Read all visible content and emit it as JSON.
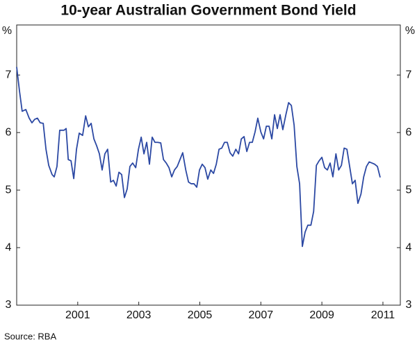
{
  "chart_data": {
    "type": "line",
    "title": "10-year Australian Government Bond Yield",
    "y_label": "%",
    "source": "Source: RBA",
    "xlim": [
      1999,
      2011.57
    ],
    "xticks": [
      2001,
      2003,
      2005,
      2007,
      2009,
      2011
    ],
    "ylim": [
      3,
      7.87
    ],
    "yticks": [
      3,
      4,
      5,
      6,
      7
    ],
    "grid": false,
    "x": [
      1999.0,
      1999.09,
      1999.18,
      1999.3,
      1999.41,
      1999.5,
      1999.59,
      1999.68,
      1999.77,
      1999.87,
      1999.96,
      2000.05,
      2000.16,
      2000.23,
      2000.32,
      2000.41,
      2000.55,
      2000.62,
      2000.69,
      2000.78,
      2000.87,
      2000.96,
      2001.05,
      2001.16,
      2001.26,
      2001.35,
      2001.44,
      2001.53,
      2001.62,
      2001.71,
      2001.8,
      2001.89,
      2001.98,
      2002.08,
      2002.17,
      2002.26,
      2002.35,
      2002.44,
      2002.53,
      2002.62,
      2002.71,
      2002.8,
      2002.9,
      2002.99,
      2003.08,
      2003.17,
      2003.26,
      2003.35,
      2003.44,
      2003.53,
      2003.62,
      2003.72,
      2003.81,
      2003.9,
      2003.99,
      2004.08,
      2004.17,
      2004.26,
      2004.35,
      2004.44,
      2004.54,
      2004.63,
      2004.72,
      2004.81,
      2004.9,
      2004.99,
      2005.08,
      2005.17,
      2005.26,
      2005.36,
      2005.45,
      2005.54,
      2005.63,
      2005.72,
      2005.81,
      2005.9,
      2005.99,
      2006.08,
      2006.18,
      2006.27,
      2006.36,
      2006.45,
      2006.54,
      2006.63,
      2006.72,
      2006.81,
      2006.9,
      2007.0,
      2007.09,
      2007.18,
      2007.27,
      2007.36,
      2007.45,
      2007.54,
      2007.63,
      2007.72,
      2007.82,
      2007.91,
      2008.0,
      2008.09,
      2008.18,
      2008.27,
      2008.36,
      2008.45,
      2008.54,
      2008.64,
      2008.73,
      2008.82,
      2008.91,
      2009.0,
      2009.09,
      2009.18,
      2009.27,
      2009.36,
      2009.46,
      2009.55,
      2009.64,
      2009.73,
      2009.82,
      2009.91,
      2010.0,
      2010.09,
      2010.18,
      2010.28,
      2010.37,
      2010.46,
      2010.55,
      2010.64,
      2010.73,
      2010.82,
      2010.91
    ],
    "series": [
      {
        "name": "10-year yield",
        "color": "#2b48a3",
        "values": [
          7.14,
          6.73,
          6.37,
          6.4,
          6.25,
          6.17,
          6.23,
          6.25,
          6.17,
          6.16,
          5.71,
          5.43,
          5.27,
          5.23,
          5.41,
          6.04,
          6.04,
          6.07,
          5.53,
          5.51,
          5.2,
          5.71,
          5.99,
          5.95,
          6.29,
          6.1,
          6.16,
          5.89,
          5.77,
          5.63,
          5.35,
          5.63,
          5.71,
          5.14,
          5.17,
          5.07,
          5.31,
          5.27,
          4.87,
          5.02,
          5.41,
          5.47,
          5.39,
          5.71,
          5.92,
          5.63,
          5.83,
          5.45,
          5.92,
          5.83,
          5.83,
          5.82,
          5.53,
          5.47,
          5.39,
          5.23,
          5.35,
          5.41,
          5.53,
          5.65,
          5.35,
          5.14,
          5.11,
          5.11,
          5.05,
          5.35,
          5.45,
          5.39,
          5.19,
          5.35,
          5.29,
          5.45,
          5.71,
          5.73,
          5.83,
          5.83,
          5.65,
          5.59,
          5.71,
          5.63,
          5.89,
          5.93,
          5.67,
          5.83,
          5.83,
          6.01,
          6.25,
          6.01,
          5.89,
          6.11,
          6.11,
          5.89,
          6.31,
          6.07,
          6.31,
          6.05,
          6.31,
          6.52,
          6.47,
          6.13,
          5.41,
          5.11,
          4.02,
          4.27,
          4.39,
          4.39,
          4.63,
          5.43,
          5.51,
          5.57,
          5.39,
          5.35,
          5.47,
          5.23,
          5.63,
          5.35,
          5.43,
          5.73,
          5.71,
          5.41,
          5.11,
          5.17,
          4.77,
          4.93,
          5.23,
          5.41,
          5.49,
          5.47,
          5.45,
          5.41,
          5.22
        ]
      }
    ]
  }
}
